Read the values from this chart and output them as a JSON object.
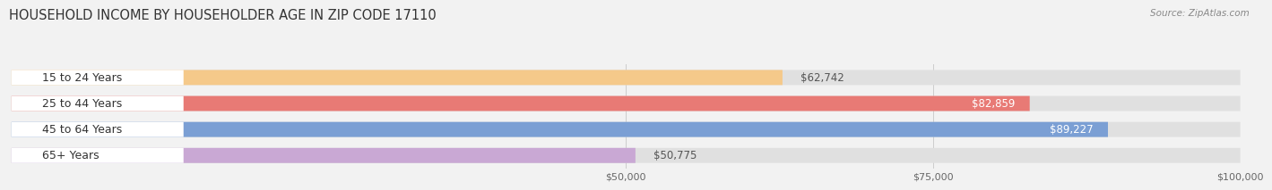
{
  "title": "HOUSEHOLD INCOME BY HOUSEHOLDER AGE IN ZIP CODE 17110",
  "source": "Source: ZipAtlas.com",
  "categories": [
    "15 to 24 Years",
    "25 to 44 Years",
    "45 to 64 Years",
    "65+ Years"
  ],
  "values": [
    62742,
    82859,
    89227,
    50775
  ],
  "bar_colors": [
    "#f5c98a",
    "#e87a75",
    "#7b9fd4",
    "#c9a8d4"
  ],
  "xmin": 0,
  "xmax": 100000,
  "xticks": [
    50000,
    75000,
    100000
  ],
  "xtick_labels": [
    "$50,000",
    "$75,000",
    "$100,000"
  ],
  "bar_height": 0.58,
  "background_color": "#f2f2f2",
  "bar_background_color": "#e0e0e0",
  "white_label_bg": "#ffffff",
  "title_fontsize": 10.5,
  "source_fontsize": 7.5,
  "label_fontsize": 8.5,
  "axis_label_fontsize": 8,
  "category_fontsize": 9,
  "label_white_threshold": 70000
}
